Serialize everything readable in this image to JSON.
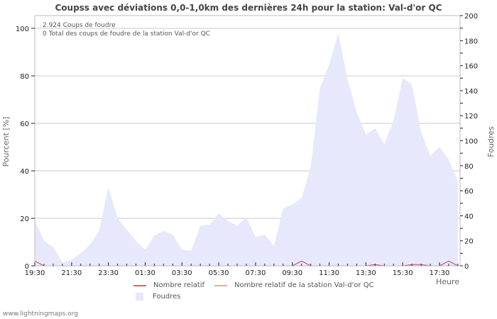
{
  "title": "Coupss avec déviations 0,0-1,0km des dernières 24h pour la station: Val-d'or QC",
  "info": {
    "line1": "2.924  Coups de foudre",
    "line2": "0 Total des coups de foudre de la station Val-d'or QC"
  },
  "axes": {
    "left_label": "Pourcent   [%]",
    "right_label": "Foudres",
    "x_label": "Heure",
    "left_ticks": [
      "0",
      "20",
      "40",
      "60",
      "80",
      "100"
    ],
    "right_ticks": [
      "0",
      "20",
      "40",
      "60",
      "80",
      "100",
      "120",
      "140",
      "160",
      "180",
      "200"
    ],
    "x_ticks": [
      "19:30",
      "21:30",
      "23:30",
      "01:30",
      "03:30",
      "05:30",
      "07:30",
      "09:30",
      "11:30",
      "13:30",
      "15:30",
      "17:30"
    ]
  },
  "legend": {
    "items": [
      {
        "label": "Nombre relatif",
        "color": "#e06060",
        "kind": "line"
      },
      {
        "label": "Nombre relatif de la station Val-d'or QC",
        "color": "#f4a0a0",
        "kind": "line"
      },
      {
        "label": "Foudres",
        "color": "#e8e8fc",
        "kind": "area"
      }
    ]
  },
  "footer": "www.lightningmaps.org",
  "colors": {
    "area": "#e8e8fc",
    "relative_line": "#d04060",
    "grid": "#c8c8c8",
    "axis": "#bbbbbb"
  },
  "chart_data": {
    "type": "area",
    "title": "Coupss avec déviations 0,0-1,0km des dernières 24h pour la station: Val-d'or QC",
    "xlabel": "Heure",
    "ylabel": "Pourcent [%]",
    "y2label": "Foudres",
    "ylim": [
      0,
      106
    ],
    "y2lim": [
      0,
      200
    ],
    "grid": true,
    "legend_position": "bottom",
    "x": [
      "19:30",
      "20:00",
      "20:30",
      "21:00",
      "21:30",
      "22:00",
      "22:30",
      "23:00",
      "23:30",
      "00:00",
      "00:30",
      "01:00",
      "01:30",
      "02:00",
      "02:30",
      "03:00",
      "03:30",
      "04:00",
      "04:30",
      "05:00",
      "05:30",
      "06:00",
      "06:30",
      "07:00",
      "07:30",
      "08:00",
      "08:30",
      "09:00",
      "09:30",
      "10:00",
      "10:30",
      "11:00",
      "11:30",
      "12:00",
      "12:30",
      "13:00",
      "13:30",
      "14:00",
      "14:30",
      "15:00",
      "15:30",
      "16:00",
      "16:30",
      "17:00",
      "17:30",
      "18:00",
      "18:30"
    ],
    "series": [
      {
        "name": "Foudres",
        "axis": "right",
        "type": "area",
        "values": [
          37,
          20,
          15,
          3,
          5,
          10,
          17,
          28,
          63,
          38,
          29,
          20,
          13,
          24,
          28,
          25,
          13,
          12,
          32,
          33,
          42,
          36,
          32,
          39,
          23,
          25,
          16,
          46,
          49,
          54,
          79,
          142,
          161,
          186,
          149,
          123,
          105,
          110,
          97,
          116,
          150,
          145,
          107,
          88,
          95,
          85,
          67
        ]
      },
      {
        "name": "Nombre relatif",
        "axis": "left",
        "type": "line",
        "values": [
          2,
          0,
          0,
          0,
          0,
          0,
          0,
          0,
          0,
          0,
          0,
          0,
          0,
          0,
          0,
          0,
          0,
          0,
          0,
          0,
          0,
          0,
          0,
          0,
          0,
          0,
          0,
          0,
          0,
          2,
          0,
          0,
          0,
          0,
          0,
          0,
          0,
          0.5,
          0,
          0,
          0,
          0.5,
          0.5,
          0,
          0,
          2,
          0
        ]
      },
      {
        "name": "Nombre relatif de la station Val-d'or QC",
        "axis": "left",
        "type": "line",
        "values": [
          0,
          0,
          0,
          0,
          0,
          0,
          0,
          0,
          0,
          0,
          0,
          0,
          0,
          0,
          0,
          0,
          0,
          0,
          0,
          0,
          0,
          0,
          0,
          0,
          0,
          0,
          0,
          0,
          0,
          0,
          0,
          0,
          0,
          0,
          0,
          0,
          0,
          0,
          0,
          0,
          0,
          0,
          0,
          0,
          0,
          0,
          0
        ]
      }
    ]
  }
}
